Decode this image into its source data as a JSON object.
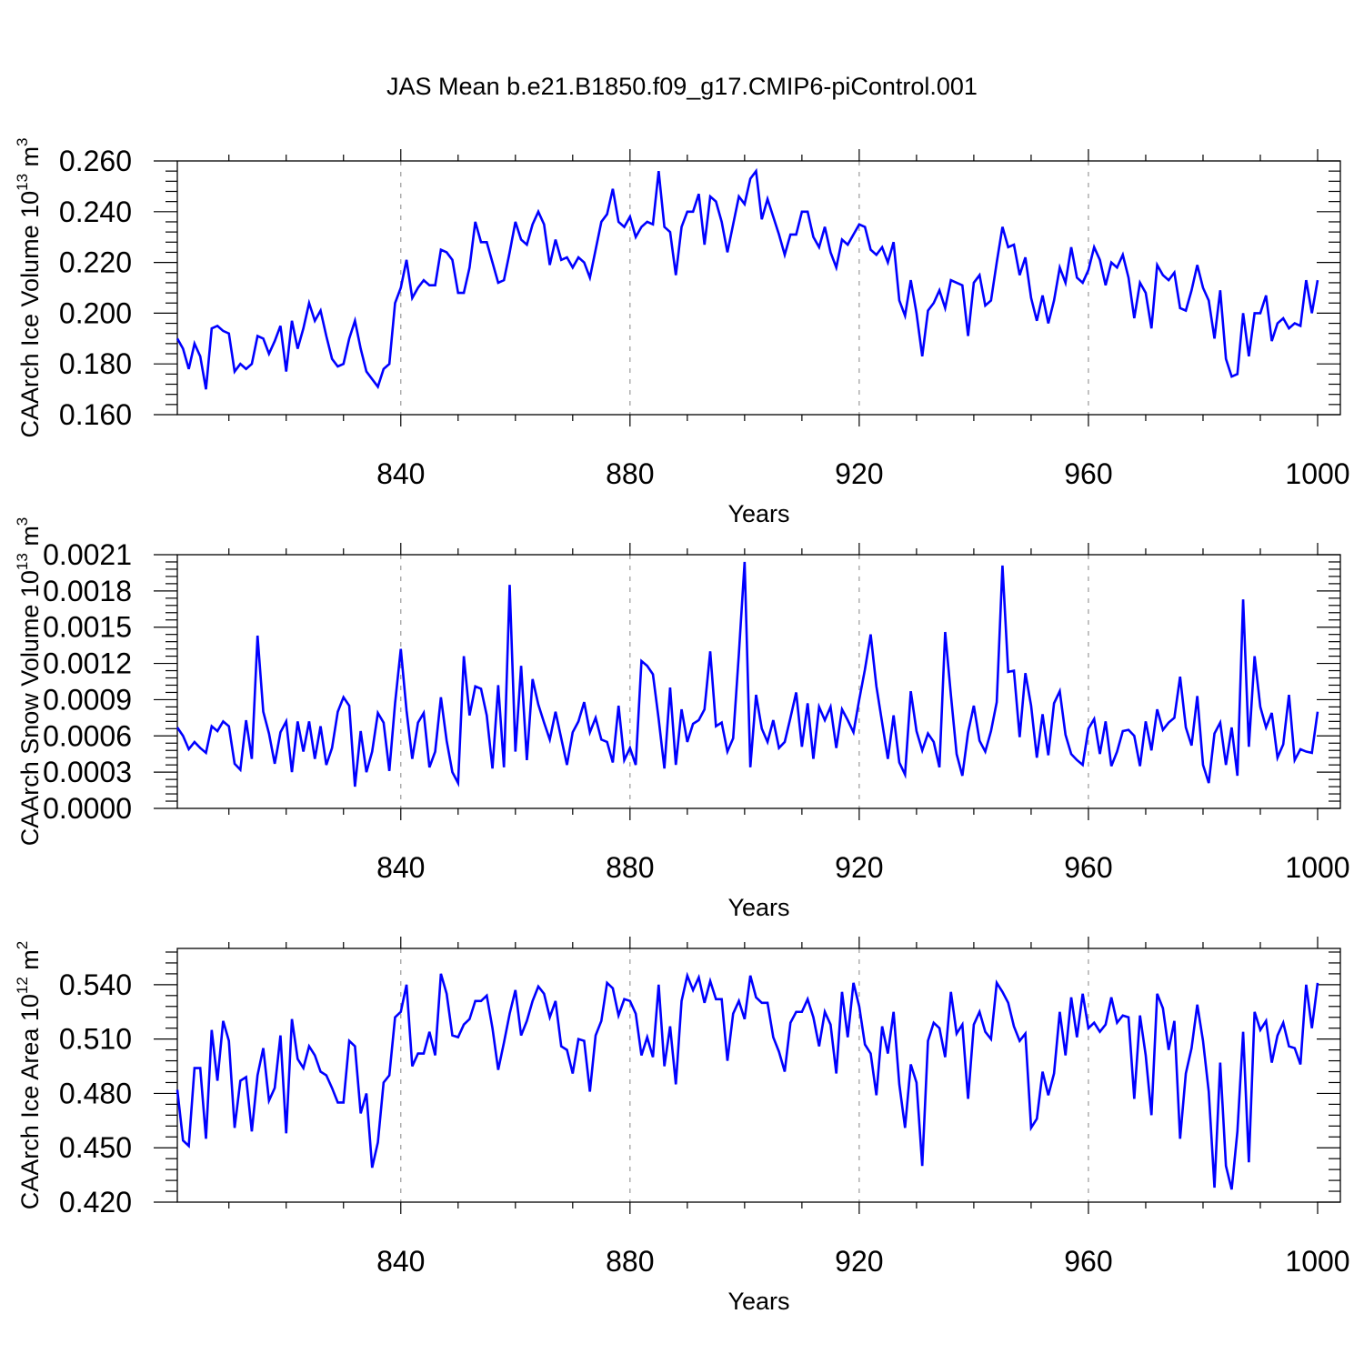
{
  "figure_title": "JAS Mean b.e21.B1850.f09_g17.CMIP6-piControl.001",
  "colors": {
    "line": "#0000ff",
    "axis": "#000000",
    "grid": "#999999"
  },
  "chart_data": [
    {
      "type": "line",
      "title": "JAS Mean b.e21.B1850.f09_g17.CMIP6-piControl.001",
      "xlabel": "Years",
      "ylabel_prefix": "CAArch Ice Volume 10",
      "ylabel_exp": "13",
      "ylabel_unit": " m",
      "ylabel_unit_exp": "3",
      "xlim": [
        801,
        1000
      ],
      "ylim": [
        0.16,
        0.26
      ],
      "x_ticks": [
        840,
        880,
        920,
        960,
        1000
      ],
      "x_tick_labels": [
        "840",
        "880",
        "920",
        "960",
        "1000"
      ],
      "y_ticks": [
        0.16,
        0.18,
        0.2,
        0.22,
        0.24,
        0.26
      ],
      "y_tick_labels": [
        "0.160",
        "0.180",
        "0.200",
        "0.220",
        "0.240",
        "0.260"
      ],
      "x_start": 801,
      "values": [
        0.19,
        0.186,
        0.178,
        0.188,
        0.183,
        0.17,
        0.194,
        0.195,
        0.193,
        0.192,
        0.177,
        0.18,
        0.178,
        0.18,
        0.191,
        0.19,
        0.184,
        0.189,
        0.195,
        0.177,
        0.197,
        0.186,
        0.194,
        0.204,
        0.197,
        0.201,
        0.191,
        0.182,
        0.179,
        0.18,
        0.19,
        0.197,
        0.186,
        0.177,
        0.174,
        0.171,
        0.178,
        0.18,
        0.204,
        0.21,
        0.221,
        0.206,
        0.21,
        0.213,
        0.211,
        0.211,
        0.225,
        0.224,
        0.221,
        0.208,
        0.208,
        0.218,
        0.236,
        0.228,
        0.228,
        0.22,
        0.212,
        0.213,
        0.224,
        0.236,
        0.229,
        0.227,
        0.235,
        0.24,
        0.235,
        0.219,
        0.229,
        0.221,
        0.222,
        0.218,
        0.222,
        0.22,
        0.214,
        0.225,
        0.236,
        0.239,
        0.249,
        0.236,
        0.234,
        0.238,
        0.23,
        0.234,
        0.236,
        0.235,
        0.256,
        0.234,
        0.232,
        0.215,
        0.234,
        0.24,
        0.24,
        0.247,
        0.227,
        0.246,
        0.244,
        0.236,
        0.224,
        0.235,
        0.246,
        0.243,
        0.253,
        0.256,
        0.237,
        0.245,
        0.238,
        0.231,
        0.223,
        0.231,
        0.231,
        0.24,
        0.24,
        0.23,
        0.226,
        0.234,
        0.224,
        0.218,
        0.229,
        0.227,
        0.231,
        0.235,
        0.234,
        0.225,
        0.223,
        0.226,
        0.22,
        0.228,
        0.205,
        0.199,
        0.213,
        0.2,
        0.183,
        0.201,
        0.204,
        0.209,
        0.202,
        0.213,
        0.212,
        0.211,
        0.191,
        0.212,
        0.215,
        0.203,
        0.205,
        0.22,
        0.234,
        0.226,
        0.227,
        0.215,
        0.222,
        0.206,
        0.197,
        0.207,
        0.196,
        0.205,
        0.218,
        0.212,
        0.226,
        0.214,
        0.212,
        0.217,
        0.226,
        0.221,
        0.211,
        0.22,
        0.218,
        0.223,
        0.214,
        0.198,
        0.212,
        0.208,
        0.194,
        0.219,
        0.215,
        0.213,
        0.216,
        0.202,
        0.201,
        0.209,
        0.219,
        0.21,
        0.205,
        0.19,
        0.209,
        0.182,
        0.175,
        0.176,
        0.2,
        0.183,
        0.2,
        0.2,
        0.207,
        0.189,
        0.196,
        0.198,
        0.194,
        0.196,
        0.195,
        0.213,
        0.2,
        0.213
      ]
    },
    {
      "type": "line",
      "xlabel": "Years",
      "ylabel_prefix": "CAArch Snow Volume 10",
      "ylabel_exp": "13",
      "ylabel_unit": " m",
      "ylabel_unit_exp": "3",
      "xlim": [
        801,
        1000
      ],
      "ylim": [
        0,
        0.0021
      ],
      "x_ticks": [
        840,
        880,
        920,
        960,
        1000
      ],
      "x_tick_labels": [
        "840",
        "880",
        "920",
        "960",
        "1000"
      ],
      "y_ticks": [
        0,
        0.0003,
        0.0006,
        0.0009,
        0.0012,
        0.0015,
        0.0018,
        0.0021
      ],
      "y_tick_labels": [
        "0.0000",
        "0.0003",
        "0.0006",
        "0.0009",
        "0.0012",
        "0.0015",
        "0.0018",
        "0.0021"
      ],
      "x_start": 801,
      "values": [
        0.00067,
        0.0006,
        0.00049,
        0.00055,
        0.0005,
        0.00046,
        0.00068,
        0.00064,
        0.00072,
        0.00068,
        0.00037,
        0.00032,
        0.00073,
        0.00041,
        0.00143,
        0.0008,
        0.00062,
        0.00037,
        0.00063,
        0.00072,
        0.0003,
        0.00072,
        0.00047,
        0.00072,
        0.00041,
        0.00068,
        0.00036,
        0.0005,
        0.0008,
        0.00092,
        0.00085,
        0.00018,
        0.00064,
        0.0003,
        0.00047,
        0.00079,
        0.00071,
        0.00031,
        0.00087,
        0.00132,
        0.00081,
        0.00041,
        0.00071,
        0.00079,
        0.00034,
        0.00047,
        0.00092,
        0.00056,
        0.0003,
        0.00021,
        0.00126,
        0.00077,
        0.00101,
        0.00099,
        0.00077,
        0.00033,
        0.00102,
        0.00034,
        0.00185,
        0.00047,
        0.00118,
        0.0004,
        0.00107,
        0.00086,
        0.00071,
        0.00057,
        0.0008,
        0.00058,
        0.00036,
        0.00063,
        0.00072,
        0.00088,
        0.00063,
        0.00075,
        0.00057,
        0.00055,
        0.00038,
        0.00085,
        0.0004,
        0.0005,
        0.00036,
        0.00122,
        0.00118,
        0.00111,
        0.00074,
        0.00033,
        0.001,
        0.00036,
        0.00082,
        0.00055,
        0.0007,
        0.00073,
        0.00082,
        0.0013,
        0.00068,
        0.00071,
        0.00047,
        0.00058,
        0.00128,
        0.00204,
        0.00034,
        0.00094,
        0.00066,
        0.00055,
        0.00073,
        0.0005,
        0.00055,
        0.00075,
        0.00096,
        0.00051,
        0.00087,
        0.00041,
        0.00084,
        0.00073,
        0.00084,
        0.0005,
        0.00082,
        0.00073,
        0.00063,
        0.0009,
        0.00115,
        0.00144,
        0.00101,
        0.00071,
        0.00041,
        0.00077,
        0.00038,
        0.00028,
        0.00097,
        0.00064,
        0.00048,
        0.00062,
        0.00055,
        0.00034,
        0.00146,
        0.00094,
        0.00045,
        0.00027,
        0.00063,
        0.00085,
        0.00056,
        0.00047,
        0.00064,
        0.00088,
        0.00201,
        0.00113,
        0.00114,
        0.00059,
        0.00112,
        0.00085,
        0.00042,
        0.00078,
        0.00044,
        0.00087,
        0.00097,
        0.00061,
        0.00045,
        0.0004,
        0.00036,
        0.00066,
        0.00074,
        0.00045,
        0.00072,
        0.00035,
        0.00047,
        0.00064,
        0.00065,
        0.0006,
        0.00035,
        0.00072,
        0.00048,
        0.00082,
        0.00065,
        0.00071,
        0.00075,
        0.00109,
        0.00067,
        0.00052,
        0.00093,
        0.00036,
        0.00021,
        0.00062,
        0.00071,
        0.00036,
        0.00067,
        0.00027,
        0.00173,
        0.00051,
        0.00126,
        0.00084,
        0.00067,
        0.00079,
        0.00042,
        0.00053,
        0.00094,
        0.0004,
        0.00049,
        0.00047,
        0.00046,
        0.0008
      ]
    },
    {
      "type": "line",
      "xlabel": "Years",
      "ylabel_prefix": "CAArch Ice Area 10",
      "ylabel_exp": "12",
      "ylabel_unit": " m",
      "ylabel_unit_exp": "2",
      "xlim": [
        801,
        1000
      ],
      "ylim": [
        0.42,
        0.56
      ],
      "x_ticks": [
        840,
        880,
        920,
        960,
        1000
      ],
      "x_tick_labels": [
        "840",
        "880",
        "920",
        "960",
        "1000"
      ],
      "y_ticks": [
        0.42,
        0.45,
        0.48,
        0.51,
        0.54
      ],
      "y_tick_labels": [
        "0.420",
        "0.450",
        "0.480",
        "0.510",
        "0.540"
      ],
      "x_start": 801,
      "values": [
        0.482,
        0.454,
        0.451,
        0.494,
        0.494,
        0.455,
        0.515,
        0.487,
        0.52,
        0.509,
        0.461,
        0.487,
        0.489,
        0.459,
        0.49,
        0.505,
        0.476,
        0.483,
        0.512,
        0.458,
        0.521,
        0.499,
        0.494,
        0.506,
        0.501,
        0.492,
        0.49,
        0.483,
        0.475,
        0.475,
        0.509,
        0.506,
        0.469,
        0.48,
        0.439,
        0.453,
        0.486,
        0.49,
        0.522,
        0.525,
        0.54,
        0.495,
        0.502,
        0.502,
        0.514,
        0.501,
        0.546,
        0.535,
        0.512,
        0.511,
        0.518,
        0.521,
        0.531,
        0.531,
        0.534,
        0.516,
        0.493,
        0.508,
        0.524,
        0.537,
        0.512,
        0.52,
        0.531,
        0.539,
        0.535,
        0.522,
        0.531,
        0.506,
        0.504,
        0.491,
        0.51,
        0.509,
        0.481,
        0.512,
        0.52,
        0.541,
        0.538,
        0.523,
        0.532,
        0.531,
        0.524,
        0.501,
        0.511,
        0.5,
        0.54,
        0.495,
        0.517,
        0.485,
        0.531,
        0.545,
        0.537,
        0.544,
        0.53,
        0.542,
        0.532,
        0.532,
        0.498,
        0.524,
        0.531,
        0.521,
        0.545,
        0.533,
        0.53,
        0.53,
        0.511,
        0.503,
        0.492,
        0.519,
        0.525,
        0.525,
        0.532,
        0.522,
        0.506,
        0.525,
        0.518,
        0.491,
        0.536,
        0.511,
        0.541,
        0.528,
        0.507,
        0.502,
        0.479,
        0.517,
        0.502,
        0.525,
        0.485,
        0.461,
        0.496,
        0.486,
        0.44,
        0.509,
        0.519,
        0.516,
        0.5,
        0.536,
        0.513,
        0.518,
        0.477,
        0.518,
        0.525,
        0.514,
        0.51,
        0.541,
        0.536,
        0.53,
        0.517,
        0.509,
        0.513,
        0.461,
        0.466,
        0.492,
        0.479,
        0.491,
        0.525,
        0.501,
        0.533,
        0.511,
        0.535,
        0.516,
        0.519,
        0.514,
        0.518,
        0.533,
        0.519,
        0.523,
        0.522,
        0.477,
        0.523,
        0.501,
        0.468,
        0.535,
        0.527,
        0.504,
        0.52,
        0.455,
        0.491,
        0.505,
        0.529,
        0.509,
        0.481,
        0.428,
        0.497,
        0.44,
        0.427,
        0.459,
        0.514,
        0.442,
        0.525,
        0.515,
        0.52,
        0.497,
        0.512,
        0.519,
        0.506,
        0.505,
        0.496,
        0.54,
        0.516,
        0.541
      ]
    }
  ]
}
